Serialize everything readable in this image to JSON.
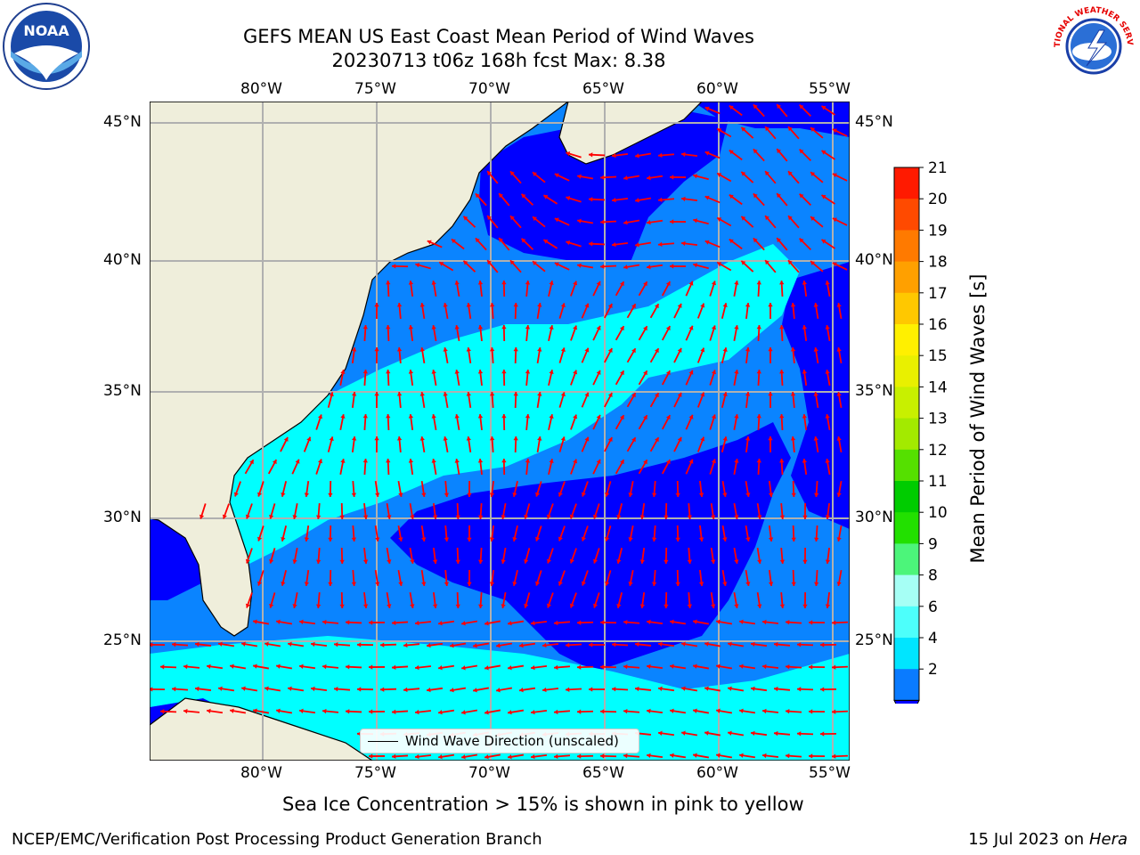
{
  "header": {
    "title_line1": "GEFS MEAN US East Coast Mean Period of Wind Waves",
    "title_line2": "20230713 t06z 168h fcst   Max: 8.38"
  },
  "logos": {
    "left": {
      "text": "NOAA",
      "icon": "noaa-logo"
    },
    "right": {
      "text": "NATIONAL WEATHER SERVICE",
      "icon": "nws-logo"
    }
  },
  "map": {
    "lon_ticks": [
      "80°W",
      "75°W",
      "70°W",
      "65°W",
      "60°W",
      "55°W"
    ],
    "lat_ticks": [
      "45°N",
      "40°N",
      "35°N",
      "30°N",
      "25°N"
    ],
    "legend_label": "Wind Wave Direction (unscaled)",
    "colors": {
      "land": "#efeedb",
      "ocean_low": "#0000ff",
      "ocean_mid": "#0a84ff",
      "ocean_high": "#00ffff",
      "arrows": "#ff0000"
    }
  },
  "colorbar": {
    "label": "Mean Period of Wind Waves [s]",
    "tick_labels": [
      "2",
      "4",
      "6",
      "8",
      "9",
      "10",
      "11",
      "12",
      "13",
      "14",
      "15",
      "16",
      "17",
      "18",
      "19",
      "20",
      "21"
    ],
    "colors": [
      "#0a7bff",
      "#00e5ff",
      "#4dfffb",
      "#a6fff5",
      "#4cf57a",
      "#22e000",
      "#00cc00",
      "#55e000",
      "#a3ea00",
      "#c8f000",
      "#e9f000",
      "#fff000",
      "#ffc800",
      "#ffa000",
      "#ff7a00",
      "#ff4a00",
      "#ff1a00"
    ],
    "extend_color": "#0000ff"
  },
  "notes": {
    "sea_ice": "Sea Ice Concentration > 15% is shown in pink to yellow"
  },
  "footer": {
    "left": "NCEP/EMC/Verification Post Processing Product Generation Branch",
    "right_prefix": "15 Jul 2023 on ",
    "right_italic": "Hera"
  }
}
